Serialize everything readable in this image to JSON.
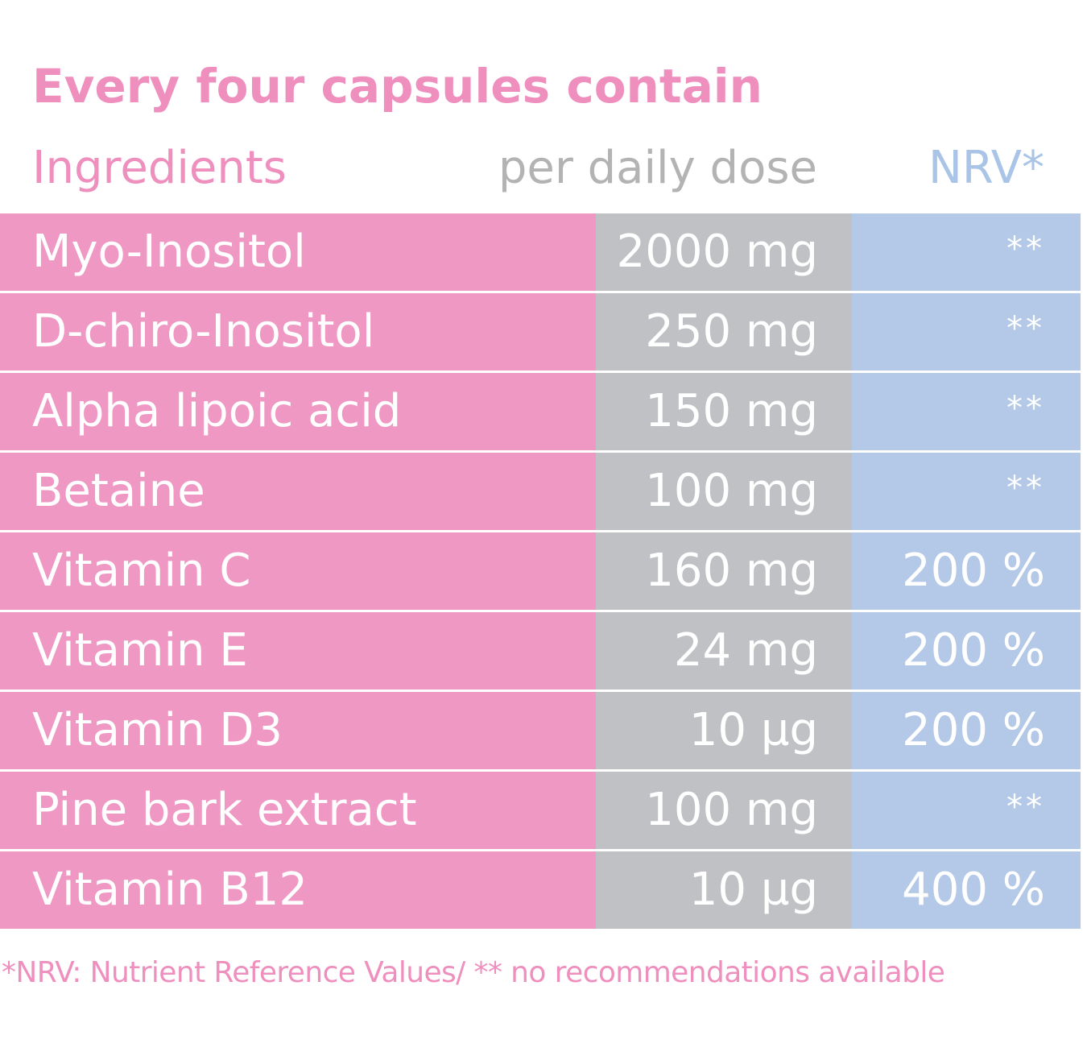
{
  "title": "Every four capsules contain",
  "headers": {
    "ingredients": "Ingredients",
    "dose": "per daily dose",
    "nrv": "NRV*"
  },
  "rows": [
    {
      "name": "Myo-Inositol",
      "dose": "2000 mg",
      "nrv": "**"
    },
    {
      "name": "D-chiro-Inositol",
      "dose": "250 mg",
      "nrv": "**"
    },
    {
      "name": "Alpha lipoic acid",
      "dose": "150 mg",
      "nrv": "**"
    },
    {
      "name": "Betaine",
      "dose": "100 mg",
      "nrv": "**"
    },
    {
      "name": "Vitamin C",
      "dose": "160 mg",
      "nrv": "200 %"
    },
    {
      "name": "Vitamin E",
      "dose": "24 mg",
      "nrv": "200 %"
    },
    {
      "name": "Vitamin D3",
      "dose": "10 µg",
      "nrv": "200 %"
    },
    {
      "name": "Pine bark extract",
      "dose": "100 mg",
      "nrv": "**"
    },
    {
      "name": "Vitamin B12",
      "dose": "10 µg",
      "nrv": "400 %"
    }
  ],
  "footnote": "*NRV: Nutrient Reference Values/  ** no recommendations available",
  "colors": {
    "pink": "#ef98c3",
    "grey": "#bfc1c4",
    "blue": "#b4c9e7",
    "title_pink": "#ee8fbe"
  }
}
